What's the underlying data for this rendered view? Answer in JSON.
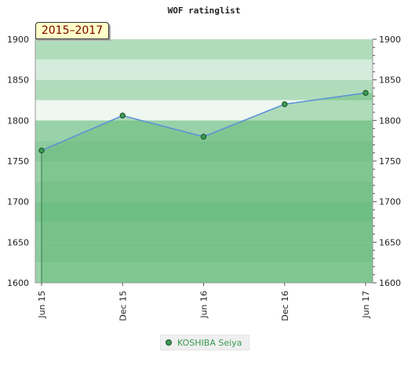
{
  "badge": "2015–2017",
  "colors": {
    "bands": [
      "#99d1a9",
      "#8ccb9d",
      "#7dc491",
      "#e6f3e9",
      "#b0dcbb",
      "#d5ecdc",
      "#eef7f0"
    ],
    "area": "#5fb873",
    "line": "#5b8fd9",
    "marker": "#3a9a54"
  },
  "chart_data": {
    "type": "area",
    "title": "WOF ratinglist",
    "xlabel": "",
    "ylabel": "",
    "x": [
      "Jun 15",
      "Dec 15",
      "Jun 16",
      "Dec 16",
      "Jun 17"
    ],
    "series": [
      {
        "name": "KOSHIBA Seiya",
        "values": [
          1763,
          1806,
          1780,
          1820,
          1834
        ]
      }
    ],
    "ylim": [
      1600,
      1900
    ],
    "yticks": [
      "1600",
      "1650",
      "1700",
      "1750",
      "1800",
      "1850",
      "1900"
    ],
    "grid": false,
    "legend": "bottom-center"
  }
}
